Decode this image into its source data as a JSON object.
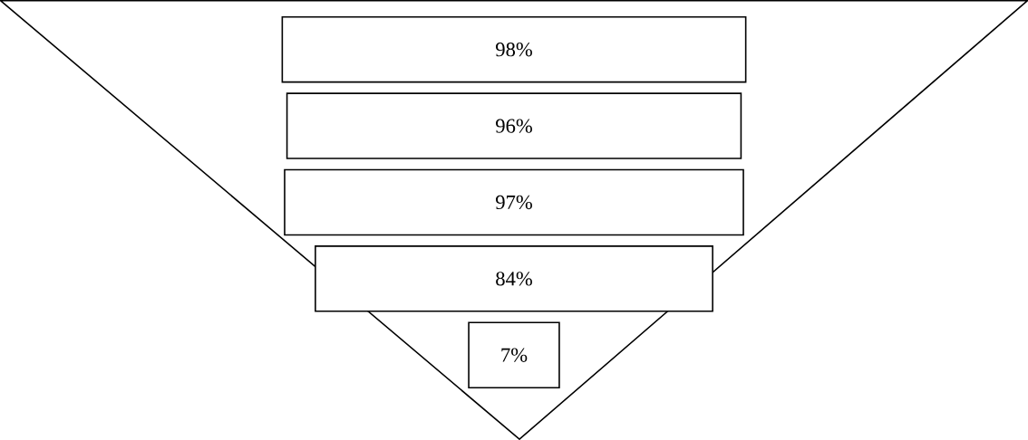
{
  "chart_data": {
    "type": "other",
    "categories": [
      null,
      null,
      null,
      null,
      null
    ],
    "values": [
      98,
      96,
      97,
      84,
      7
    ],
    "value_labels": [
      "98%",
      "96%",
      "97%",
      "84%",
      "7%"
    ]
  }
}
